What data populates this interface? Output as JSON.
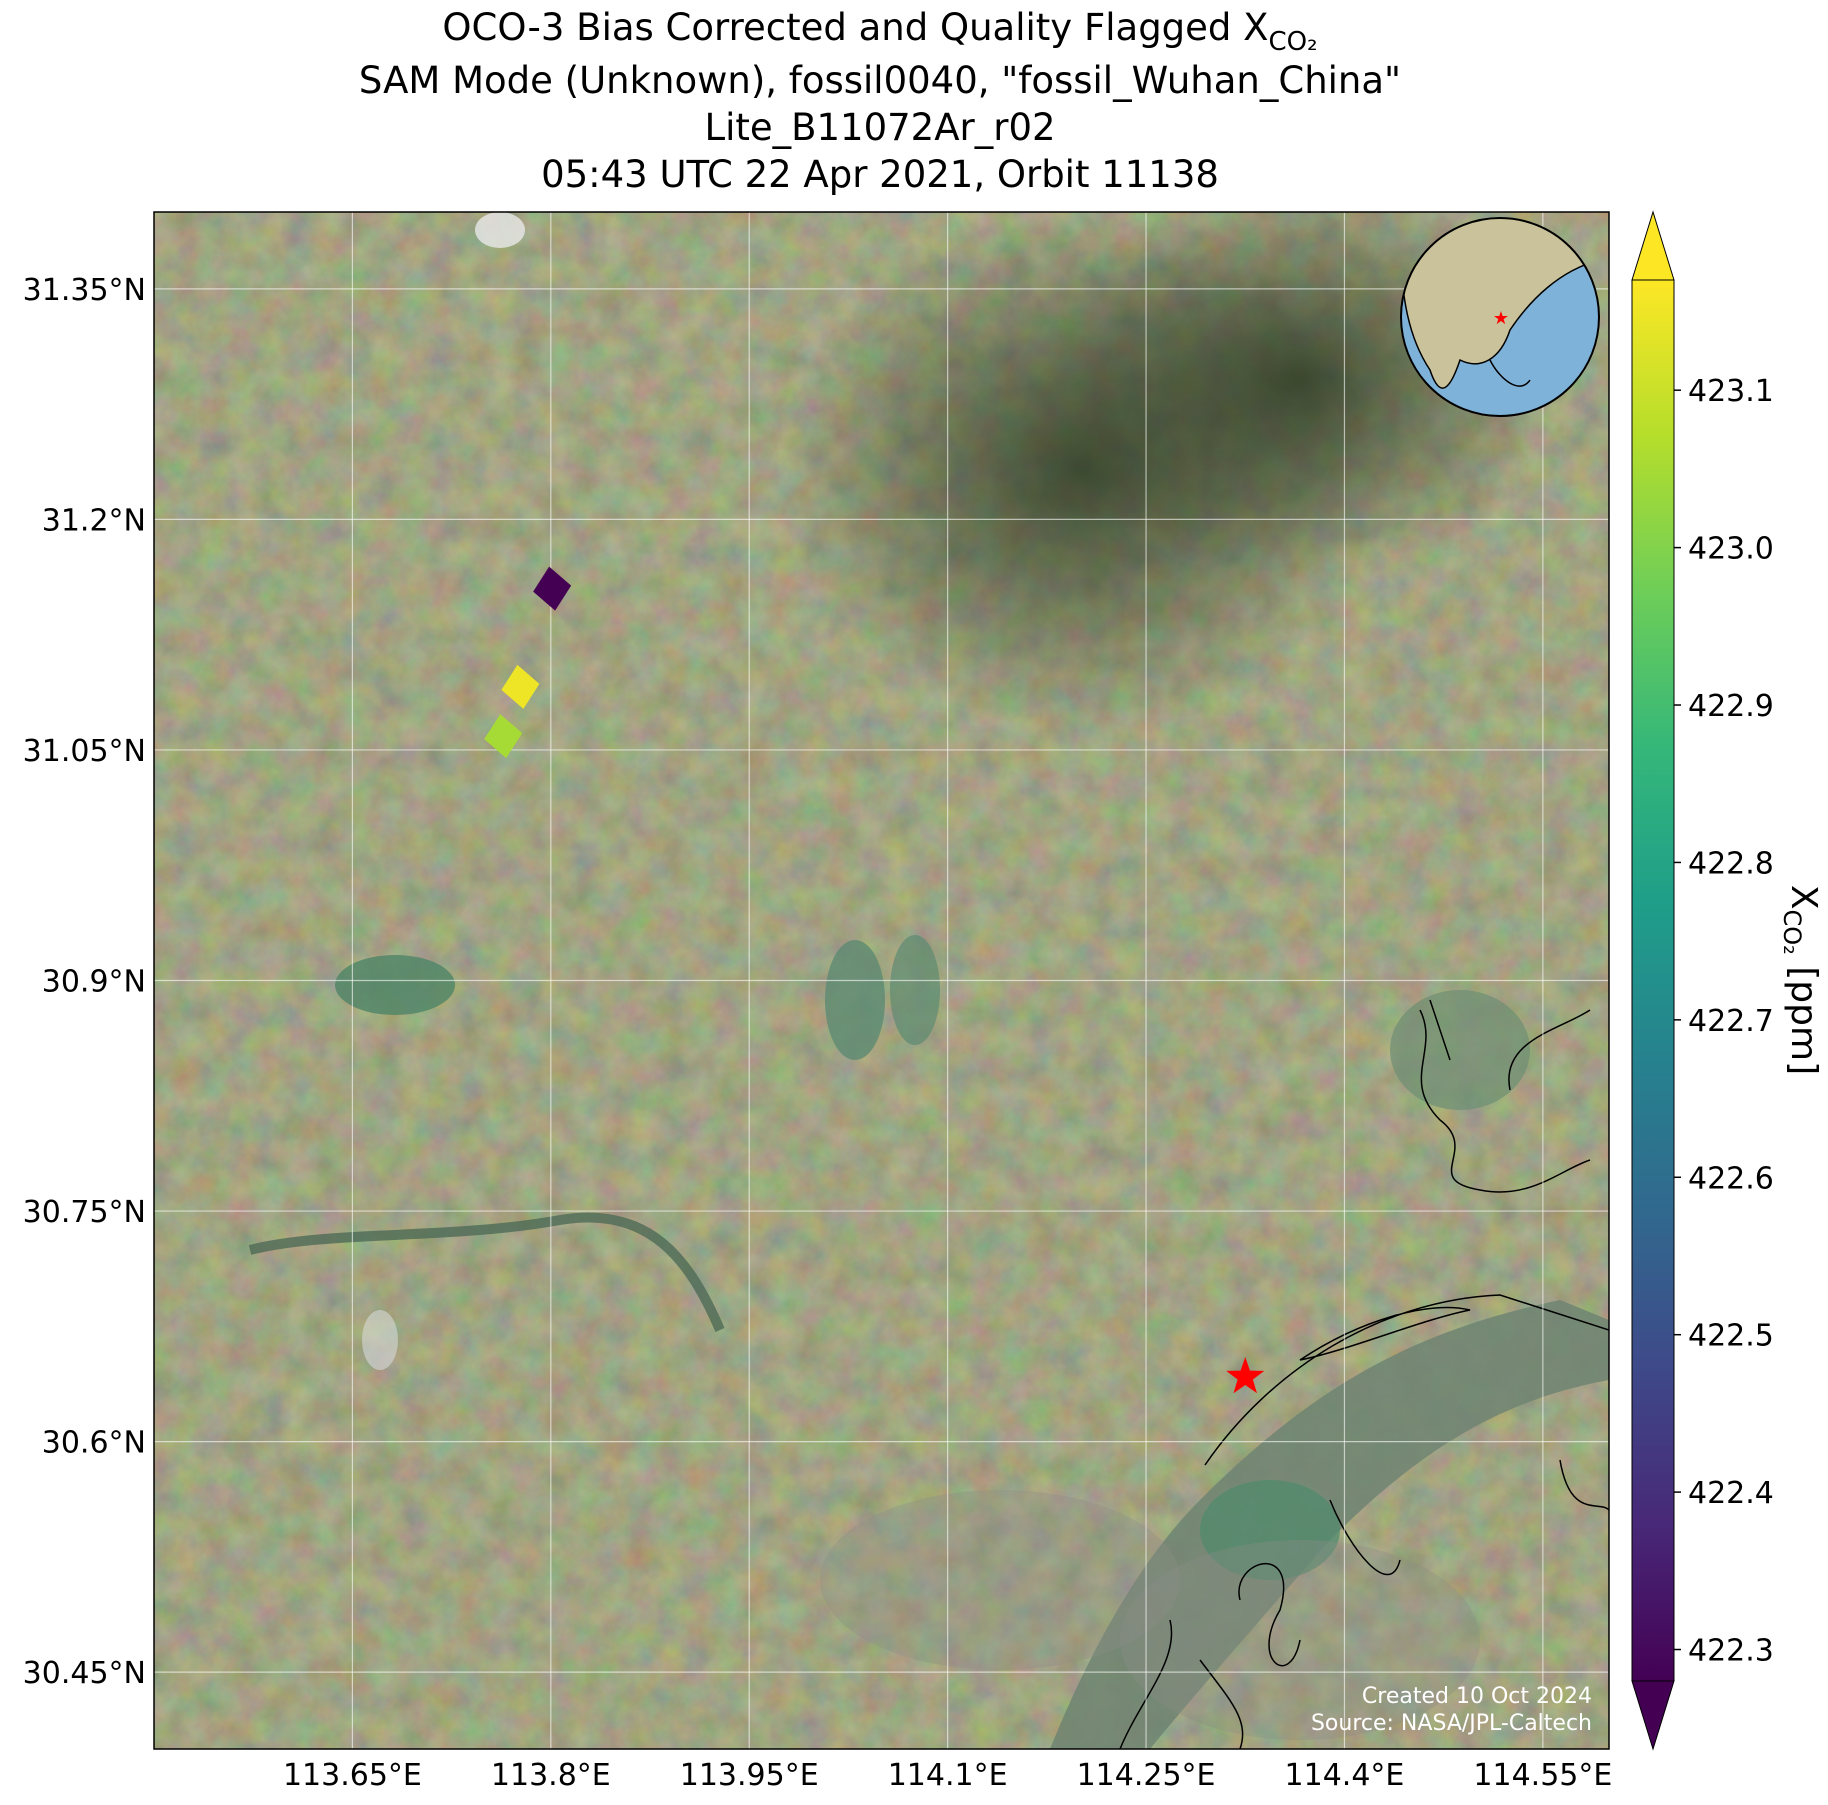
{
  "chart_data": {
    "type": "scatter",
    "title": "OCO-3 Bias Corrected and Quality Flagged X",
    "title_subscript": "CO₂",
    "subtitle": [
      "SAM Mode (Unknown), fossil0040, \"fossil_Wuhan_China\"",
      "Lite_B11072Ar_r02",
      "05:43 UTC 22 Apr 2021, Orbit 11138"
    ],
    "x": [
      113.801,
      113.777,
      113.764
    ],
    "y": [
      31.155,
      31.091,
      31.059
    ],
    "values": [
      422.28,
      423.15,
      423.05
    ],
    "colormap": "viridis",
    "site": {
      "lon": 114.325,
      "lat": 30.642,
      "color": "#ff0000"
    },
    "xlim": [
      113.5,
      114.6
    ],
    "ylim": [
      30.4,
      31.4
    ],
    "xticks": [
      {
        "value": 113.65,
        "label": "113.65°E"
      },
      {
        "value": 113.8,
        "label": "113.8°E"
      },
      {
        "value": 113.95,
        "label": "113.95°E"
      },
      {
        "value": 114.1,
        "label": "114.1°E"
      },
      {
        "value": 114.25,
        "label": "114.25°E"
      },
      {
        "value": 114.4,
        "label": "114.4°E"
      },
      {
        "value": 114.55,
        "label": "114.55°E"
      }
    ],
    "yticks": [
      {
        "value": 30.45,
        "label": "30.45°N"
      },
      {
        "value": 30.6,
        "label": "30.6°N"
      },
      {
        "value": 30.75,
        "label": "30.75°N"
      },
      {
        "value": 30.9,
        "label": "30.9°N"
      },
      {
        "value": 31.05,
        "label": "31.05°N"
      },
      {
        "value": 31.2,
        "label": "31.2°N"
      },
      {
        "value": 31.35,
        "label": "31.35°N"
      }
    ],
    "grid": true,
    "clim": [
      422.28,
      423.17
    ],
    "cticks": [
      422.3,
      422.4,
      422.5,
      422.6,
      422.7,
      422.8,
      422.9,
      {
        "value": 423,
        "label": "423.0"
      },
      423.1
    ],
    "colorbar_label": {
      "text": "X",
      "subscript": "CO₂",
      "unit": " [ppm]"
    },
    "annotations": [
      "Created 10 Oct 2024",
      "Source: NASA/JPL-Caltech"
    ]
  }
}
